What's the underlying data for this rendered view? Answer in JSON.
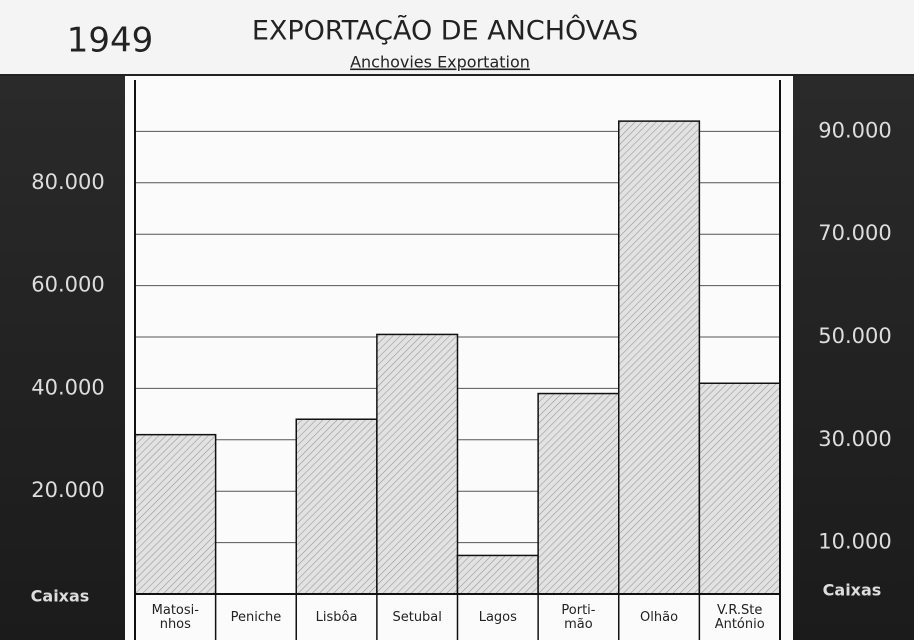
{
  "chart_data": {
    "type": "bar",
    "year": "1949",
    "title": "EXPORTAÇÃO DE ANCHÔVAS",
    "subtitle": "Anchovies Exportation",
    "ylabel": "Caixas",
    "y2label": "Caixas",
    "categories": [
      "Matosi-\nnhos",
      "Peniche",
      "Lisbôa",
      "Setubal",
      "Lagos",
      "Porti-\nmão",
      "Olhão",
      "V.R.Ste\nAntónio"
    ],
    "values": [
      31000,
      0,
      34000,
      50500,
      7500,
      39000,
      92000,
      41000
    ],
    "color": "#cfcfcf",
    "ylim": [
      0,
      100000
    ],
    "yticks": [
      {
        "value": 20000,
        "label": "20.000"
      },
      {
        "value": 40000,
        "label": "40.000"
      },
      {
        "value": 60000,
        "label": "60.000"
      },
      {
        "value": 80000,
        "label": "80.000"
      }
    ],
    "y2lim": [
      0,
      100000
    ],
    "y2ticks": [
      {
        "value": 10000,
        "label": "10.000"
      },
      {
        "value": 30000,
        "label": "30.000"
      },
      {
        "value": 50000,
        "label": "50.000"
      },
      {
        "value": 70000,
        "label": "70.000"
      },
      {
        "value": 90000,
        "label": "90.000"
      }
    ],
    "grid": true
  }
}
